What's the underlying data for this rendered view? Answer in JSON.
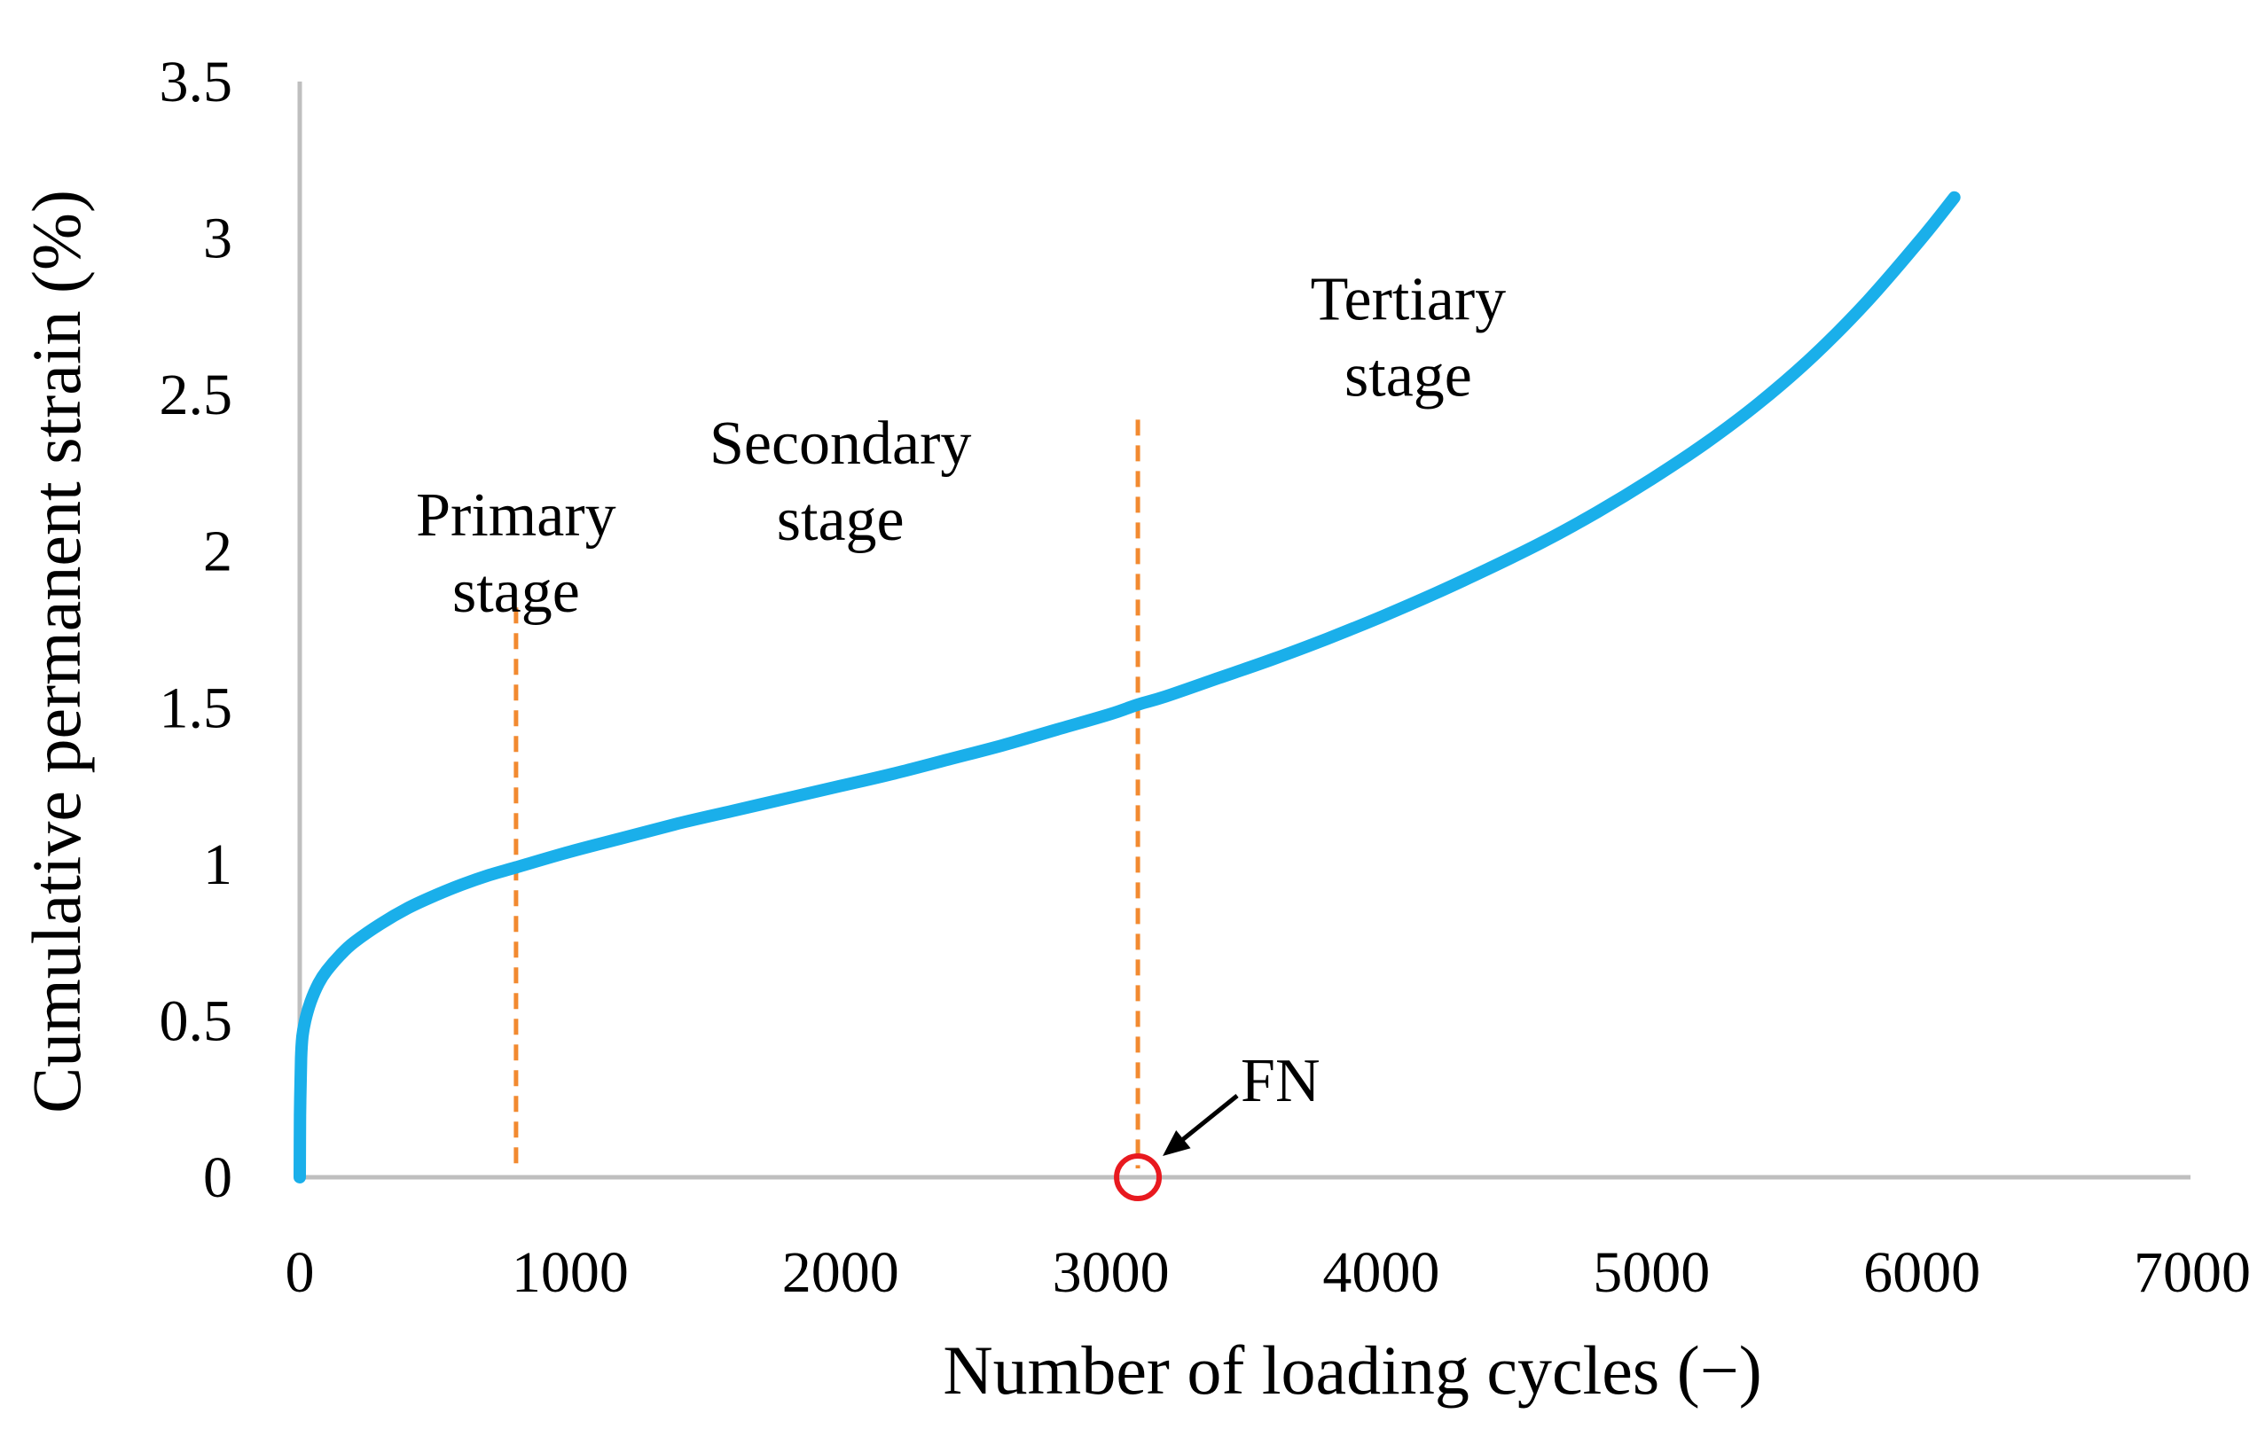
{
  "chart_data": {
    "type": "line",
    "title": "",
    "xlabel": "Number of loading cycles (−)",
    "ylabel": "Cumulative permanent strain (%)",
    "xlim": [
      0,
      7000
    ],
    "ylim": [
      0,
      3.5
    ],
    "xticks": [
      0,
      1000,
      2000,
      3000,
      4000,
      5000,
      6000,
      7000
    ],
    "yticks": [
      0,
      0.5,
      1,
      1.5,
      2,
      2.5,
      3,
      3.5
    ],
    "xtick_labels": [
      "0",
      "1000",
      "2000",
      "3000",
      "4000",
      "5000",
      "6000",
      "7000"
    ],
    "ytick_labels": [
      "0",
      "0.5",
      "1",
      "1.5",
      "2",
      "2.5",
      "3",
      "3.5"
    ],
    "grid": false,
    "series": [
      {
        "name": "Cumulative permanent strain",
        "color": "#1AAFEA",
        "x": [
          0,
          1,
          5,
          10,
          20,
          40,
          70,
          100,
          150,
          200,
          300,
          400,
          500,
          600,
          700,
          800,
          1000,
          1200,
          1400,
          1600,
          1800,
          2000,
          2200,
          2400,
          2600,
          2800,
          3000,
          3100,
          3200,
          3400,
          3600,
          3800,
          4000,
          4200,
          4400,
          4600,
          4800,
          5000,
          5200,
          5400,
          5600,
          5800,
          6000,
          6120
        ],
        "y": [
          0,
          0.2,
          0.38,
          0.45,
          0.5,
          0.56,
          0.62,
          0.66,
          0.71,
          0.75,
          0.81,
          0.86,
          0.9,
          0.935,
          0.965,
          0.99,
          1.04,
          1.085,
          1.13,
          1.17,
          1.21,
          1.25,
          1.29,
          1.335,
          1.38,
          1.43,
          1.48,
          1.51,
          1.535,
          1.595,
          1.655,
          1.72,
          1.79,
          1.865,
          1.945,
          2.03,
          2.125,
          2.23,
          2.345,
          2.475,
          2.625,
          2.8,
          3.0,
          3.13
        ]
      }
    ],
    "reference_lines": [
      {
        "name": "primary-secondary boundary",
        "x": 800,
        "y_top": 1.82,
        "color": "#F28A30",
        "style": "dashed"
      },
      {
        "name": "secondary-tertiary boundary",
        "x": 3100,
        "y_top": 2.42,
        "color": "#F28A30",
        "style": "dashed"
      }
    ],
    "marker": {
      "label": "FN",
      "x": 3100,
      "y": 0,
      "color": "#E8191F"
    },
    "annotations": [
      {
        "id": "primary",
        "lines": [
          "Primary",
          "stage"
        ],
        "x": 800,
        "y": 2.05
      },
      {
        "id": "secondary",
        "lines": [
          "Secondary",
          "stage"
        ],
        "x": 2000,
        "y": 2.28
      },
      {
        "id": "tertiary",
        "lines": [
          "Tertiary",
          "stage"
        ],
        "x": 4100,
        "y": 2.74
      }
    ],
    "colors": {
      "axis": "#BFBFBF",
      "text": "#000000",
      "arrow": "#000000"
    }
  }
}
